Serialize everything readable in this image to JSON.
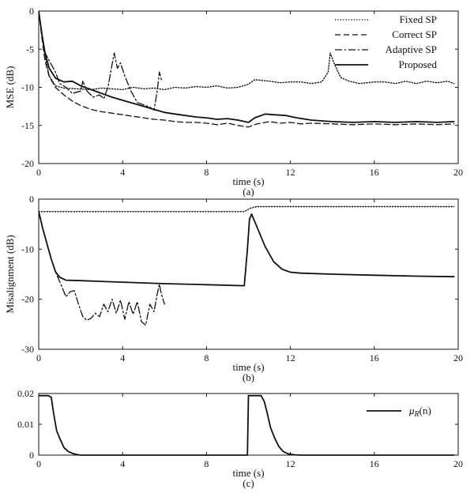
{
  "chart_data": [
    {
      "id": "a",
      "type": "line",
      "caption": "(a)",
      "xlabel": "time (s)",
      "ylabel": "MSE (dB)",
      "xlim": [
        0,
        20
      ],
      "ylim": [
        -20,
        0
      ],
      "xticks": [
        0,
        4,
        8,
        12,
        16,
        20
      ],
      "yticks": [
        0,
        -5,
        -10,
        -15,
        -20
      ],
      "legend_position": "top-right",
      "series": [
        {
          "name": "Fixed SP",
          "style": "dotted",
          "points": [
            [
              0,
              0
            ],
            [
              0.15,
              -3
            ],
            [
              0.3,
              -6
            ],
            [
              0.5,
              -8.5
            ],
            [
              0.8,
              -9.8
            ],
            [
              1.2,
              -10.1
            ],
            [
              1.8,
              -10.2
            ],
            [
              2.5,
              -10.3
            ],
            [
              3,
              -10.1
            ],
            [
              3.5,
              -10.2
            ],
            [
              4,
              -10.3
            ],
            [
              4.5,
              -10
            ],
            [
              5,
              -10.2
            ],
            [
              5.5,
              -10.1
            ],
            [
              6,
              -10.3
            ],
            [
              6.5,
              -10
            ],
            [
              7,
              -10.1
            ],
            [
              7.5,
              -9.9
            ],
            [
              8,
              -10
            ],
            [
              8.5,
              -9.8
            ],
            [
              9,
              -10.1
            ],
            [
              9.5,
              -10
            ],
            [
              10,
              -9.6
            ],
            [
              10.3,
              -9
            ],
            [
              11,
              -9.2
            ],
            [
              11.5,
              -9.4
            ],
            [
              12,
              -9.3
            ],
            [
              12.5,
              -9.3
            ],
            [
              13,
              -9.5
            ],
            [
              13.5,
              -9.3
            ],
            [
              13.8,
              -8
            ],
            [
              13.9,
              -5.5
            ],
            [
              14.1,
              -7
            ],
            [
              14.4,
              -8.7
            ],
            [
              14.8,
              -9.2
            ],
            [
              15.3,
              -9.5
            ],
            [
              16,
              -9.3
            ],
            [
              16.5,
              -9.3
            ],
            [
              17,
              -9.5
            ],
            [
              17.5,
              -9.2
            ],
            [
              18,
              -9.5
            ],
            [
              18.5,
              -9.2
            ],
            [
              19,
              -9.4
            ],
            [
              19.5,
              -9.2
            ],
            [
              19.8,
              -9.5
            ]
          ]
        },
        {
          "name": "Correct SP",
          "style": "dashed",
          "points": [
            [
              0,
              0
            ],
            [
              0.15,
              -3.5
            ],
            [
              0.3,
              -6.5
            ],
            [
              0.5,
              -8.6
            ],
            [
              0.8,
              -10
            ],
            [
              1.2,
              -11
            ],
            [
              1.6,
              -11.8
            ],
            [
              2,
              -12.4
            ],
            [
              2.5,
              -12.9
            ],
            [
              3,
              -13.2
            ],
            [
              3.5,
              -13.4
            ],
            [
              4,
              -13.6
            ],
            [
              4.5,
              -13.8
            ],
            [
              5,
              -14
            ],
            [
              5.5,
              -14.2
            ],
            [
              6,
              -14.3
            ],
            [
              6.5,
              -14.5
            ],
            [
              7,
              -14.6
            ],
            [
              7.5,
              -14.6
            ],
            [
              8,
              -14.7
            ],
            [
              8.5,
              -14.9
            ],
            [
              9,
              -14.7
            ],
            [
              9.5,
              -15
            ],
            [
              10,
              -15.2
            ],
            [
              10.4,
              -14.8
            ],
            [
              11,
              -14.5
            ],
            [
              11.5,
              -14.7
            ],
            [
              12,
              -14.6
            ],
            [
              12.5,
              -14.8
            ],
            [
              13,
              -14.7
            ],
            [
              14,
              -14.8
            ],
            [
              15,
              -14.9
            ],
            [
              16,
              -14.8
            ],
            [
              17,
              -14.9
            ],
            [
              18,
              -14.8
            ],
            [
              19,
              -14.9
            ],
            [
              19.8,
              -14.8
            ]
          ]
        },
        {
          "name": "Adaptive SP",
          "style": "dashdot",
          "points": [
            [
              0,
              0
            ],
            [
              0.15,
              -3
            ],
            [
              0.3,
              -5.5
            ],
            [
              0.5,
              -6.5
            ],
            [
              0.8,
              -8
            ],
            [
              1,
              -9.5
            ],
            [
              1.3,
              -10
            ],
            [
              1.6,
              -10.8
            ],
            [
              2,
              -10.5
            ],
            [
              2.1,
              -9.2
            ],
            [
              2.3,
              -10.5
            ],
            [
              2.6,
              -11.3
            ],
            [
              2.9,
              -11
            ],
            [
              3.1,
              -11.5
            ],
            [
              3.3,
              -10
            ],
            [
              3.5,
              -7
            ],
            [
              3.6,
              -5.5
            ],
            [
              3.75,
              -7.5
            ],
            [
              3.9,
              -6.8
            ],
            [
              4.1,
              -8.5
            ],
            [
              4.4,
              -10.5
            ],
            [
              4.7,
              -12
            ],
            [
              5,
              -12.3
            ],
            [
              5.3,
              -12.6
            ],
            [
              5.5,
              -13
            ],
            [
              5.65,
              -10.5
            ],
            [
              5.75,
              -8
            ],
            [
              5.85,
              -9
            ]
          ]
        },
        {
          "name": "Proposed",
          "style": "solid",
          "points": [
            [
              0,
              0
            ],
            [
              0.15,
              -3
            ],
            [
              0.3,
              -5.5
            ],
            [
              0.5,
              -7.5
            ],
            [
              0.8,
              -8.8
            ],
            [
              1.2,
              -9.3
            ],
            [
              1.6,
              -9.2
            ],
            [
              2,
              -9.8
            ],
            [
              2.5,
              -10.3
            ],
            [
              3,
              -10.8
            ],
            [
              3.5,
              -11.3
            ],
            [
              4,
              -11.7
            ],
            [
              4.5,
              -12.1
            ],
            [
              5,
              -12.5
            ],
            [
              5.5,
              -12.9
            ],
            [
              6,
              -13.3
            ],
            [
              6.5,
              -13.5
            ],
            [
              7,
              -13.7
            ],
            [
              7.5,
              -13.9
            ],
            [
              8,
              -14
            ],
            [
              8.5,
              -14.2
            ],
            [
              9,
              -14.1
            ],
            [
              9.5,
              -14.3
            ],
            [
              10,
              -14.6
            ],
            [
              10.3,
              -14
            ],
            [
              10.8,
              -13.5
            ],
            [
              11.2,
              -13.6
            ],
            [
              11.8,
              -13.7
            ],
            [
              12.3,
              -14
            ],
            [
              13,
              -14.3
            ],
            [
              13.5,
              -14.4
            ],
            [
              14,
              -14.5
            ],
            [
              15,
              -14.6
            ],
            [
              16,
              -14.5
            ],
            [
              17,
              -14.6
            ],
            [
              18,
              -14.5
            ],
            [
              19,
              -14.6
            ],
            [
              19.8,
              -14.5
            ]
          ]
        }
      ]
    },
    {
      "id": "b",
      "type": "line",
      "caption": "(b)",
      "xlabel": "time (s)",
      "ylabel": "Misalignment (dB)",
      "xlim": [
        0,
        20
      ],
      "ylim": [
        -30,
        0
      ],
      "xticks": [
        0,
        4,
        8,
        12,
        16,
        20
      ],
      "yticks": [
        0,
        -10,
        -20,
        -30
      ],
      "series": [
        {
          "name": "Fixed SP",
          "style": "dotted",
          "points": [
            [
              0,
              -2.5
            ],
            [
              2,
              -2.5
            ],
            [
              4,
              -2.5
            ],
            [
              6,
              -2.5
            ],
            [
              8,
              -2.5
            ],
            [
              9.8,
              -2.5
            ],
            [
              10.1,
              -1.8
            ],
            [
              10.4,
              -1.5
            ],
            [
              12,
              -1.5
            ],
            [
              14,
              -1.5
            ],
            [
              16,
              -1.5
            ],
            [
              18,
              -1.5
            ],
            [
              19.8,
              -1.5
            ]
          ]
        },
        {
          "name": "Adaptive SP",
          "style": "dashdot",
          "points": [
            [
              0,
              -2.5
            ],
            [
              0.2,
              -6
            ],
            [
              0.4,
              -9
            ],
            [
              0.6,
              -12
            ],
            [
              0.8,
              -14.5
            ],
            [
              1.1,
              -17.5
            ],
            [
              1.3,
              -19.5
            ],
            [
              1.5,
              -18.5
            ],
            [
              1.7,
              -18.3
            ],
            [
              1.9,
              -21
            ],
            [
              2.1,
              -23.5
            ],
            [
              2.3,
              -24.2
            ],
            [
              2.5,
              -23.8
            ],
            [
              2.7,
              -22.8
            ],
            [
              2.9,
              -23.5
            ],
            [
              3.1,
              -21
            ],
            [
              3.3,
              -22.5
            ],
            [
              3.5,
              -20
            ],
            [
              3.7,
              -22.8
            ],
            [
              3.9,
              -20.2
            ],
            [
              4.1,
              -24
            ],
            [
              4.3,
              -20.5
            ],
            [
              4.5,
              -23
            ],
            [
              4.7,
              -20.5
            ],
            [
              4.9,
              -24.5
            ],
            [
              5.1,
              -25.2
            ],
            [
              5.3,
              -21
            ],
            [
              5.5,
              -22.5
            ],
            [
              5.65,
              -19
            ],
            [
              5.75,
              -17
            ],
            [
              5.85,
              -19
            ],
            [
              6,
              -21
            ]
          ]
        },
        {
          "name": "Proposed",
          "style": "solid",
          "points": [
            [
              0,
              -2.5
            ],
            [
              0.2,
              -6
            ],
            [
              0.4,
              -9
            ],
            [
              0.6,
              -12
            ],
            [
              0.8,
              -14.5
            ],
            [
              1,
              -15.6
            ],
            [
              1.3,
              -16.2
            ],
            [
              2,
              -16.3
            ],
            [
              4,
              -16.6
            ],
            [
              6,
              -16.9
            ],
            [
              8,
              -17.1
            ],
            [
              9.8,
              -17.3
            ],
            [
              9.95,
              -10
            ],
            [
              10.05,
              -4
            ],
            [
              10.15,
              -3
            ],
            [
              10.4,
              -5.5
            ],
            [
              10.8,
              -9.5
            ],
            [
              11.2,
              -12.5
            ],
            [
              11.6,
              -14
            ],
            [
              12,
              -14.6
            ],
            [
              12.5,
              -14.8
            ],
            [
              14,
              -15
            ],
            [
              16,
              -15.2
            ],
            [
              18,
              -15.4
            ],
            [
              19.8,
              -15.5
            ]
          ]
        }
      ]
    },
    {
      "id": "c",
      "type": "line",
      "caption": "(c)",
      "xlabel": "time (s)",
      "ylabel": "",
      "xlim": [
        0,
        20
      ],
      "ylim": [
        0,
        0.02
      ],
      "xticks": [
        0,
        4,
        8,
        12,
        16,
        20
      ],
      "yticks": [
        0,
        0.01,
        0.02
      ],
      "legend_position": "top-right",
      "series": [
        {
          "name": "μR(n)",
          "legend_main": "μ",
          "legend_sub": "R",
          "legend_suffix": "(n)",
          "style": "solid",
          "points": [
            [
              0,
              0.0193
            ],
            [
              0.2,
              0.0193
            ],
            [
              0.45,
              0.0193
            ],
            [
              0.6,
              0.0188
            ],
            [
              0.7,
              0.014
            ],
            [
              0.85,
              0.008
            ],
            [
              1,
              0.0055
            ],
            [
              1.2,
              0.0025
            ],
            [
              1.4,
              0.0012
            ],
            [
              1.6,
              0.0006
            ],
            [
              1.8,
              0.0002
            ],
            [
              2,
              0
            ],
            [
              4,
              0
            ],
            [
              6,
              0
            ],
            [
              8,
              0
            ],
            [
              9.95,
              0
            ],
            [
              10,
              0.0193
            ],
            [
              10.4,
              0.0193
            ],
            [
              10.6,
              0.0193
            ],
            [
              10.75,
              0.0175
            ],
            [
              10.9,
              0.0135
            ],
            [
              11.05,
              0.009
            ],
            [
              11.25,
              0.0055
            ],
            [
              11.45,
              0.0028
            ],
            [
              11.65,
              0.0012
            ],
            [
              11.9,
              0.0004
            ],
            [
              12.2,
              0.0001
            ],
            [
              12.5,
              0
            ],
            [
              14,
              0
            ],
            [
              16,
              0
            ],
            [
              18,
              0
            ],
            [
              19.8,
              0
            ]
          ]
        }
      ]
    }
  ]
}
